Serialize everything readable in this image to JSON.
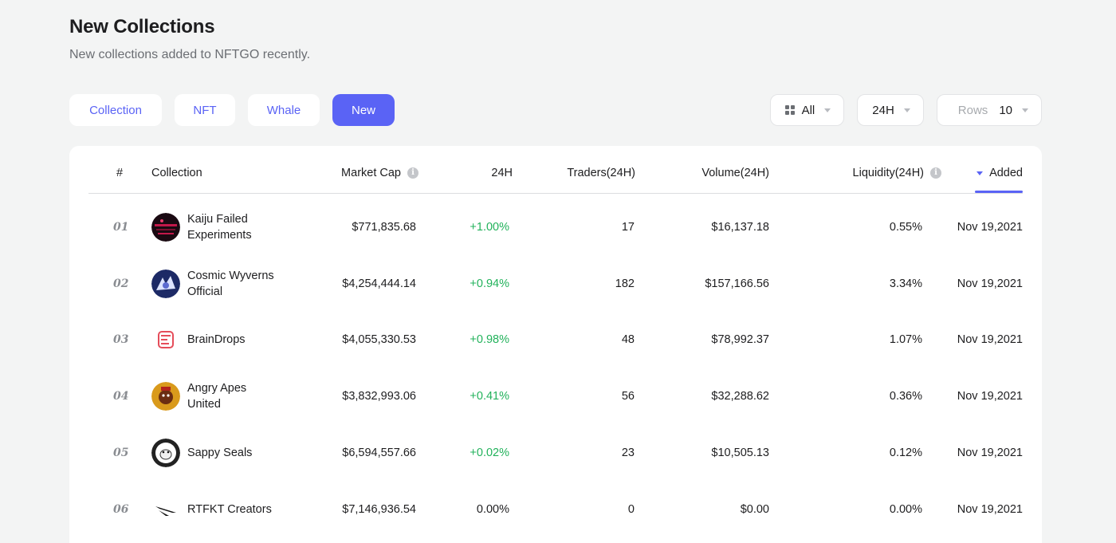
{
  "header": {
    "title": "New Collections",
    "subtitle": "New collections added to NFTGO recently."
  },
  "tabs": [
    {
      "label": "Collection",
      "active": false
    },
    {
      "label": "NFT",
      "active": false
    },
    {
      "label": "Whale",
      "active": false
    },
    {
      "label": "New",
      "active": true
    }
  ],
  "filters": {
    "category": {
      "icon": "grid-icon",
      "value": "All"
    },
    "period": {
      "value": "24H"
    },
    "rows": {
      "label": "Rows",
      "value": "10"
    }
  },
  "colors": {
    "accent": "#5a63f5",
    "positive": "#22b25b"
  },
  "table": {
    "columns": {
      "rank": "#",
      "collection": "Collection",
      "market_cap": "Market Cap",
      "change": "24H",
      "traders": "Traders(24H)",
      "volume": "Volume(24H)",
      "liquidity": "Liquidity(24H)",
      "added": "Added"
    },
    "sort": {
      "column": "added",
      "direction": "desc"
    },
    "rows": [
      {
        "rank": "01",
        "name": "Kaiju Failed Experiments",
        "avatar": "kaiju-avatar",
        "market_cap": "$771,835.68",
        "change": "+1.00%",
        "traders": "17",
        "volume": "$16,137.18",
        "liquidity": "0.55%",
        "added": "Nov 19,2021"
      },
      {
        "rank": "02",
        "name": "Cosmic Wyverns Official",
        "avatar": "wyvern-avatar",
        "market_cap": "$4,254,444.14",
        "change": "+0.94%",
        "traders": "182",
        "volume": "$157,166.56",
        "liquidity": "3.34%",
        "added": "Nov 19,2021"
      },
      {
        "rank": "03",
        "name": "BrainDrops",
        "avatar": "braindrops-avatar",
        "market_cap": "$4,055,330.53",
        "change": "+0.98%",
        "traders": "48",
        "volume": "$78,992.37",
        "liquidity": "1.07%",
        "added": "Nov 19,2021"
      },
      {
        "rank": "04",
        "name": "Angry Apes United",
        "avatar": "ape-avatar",
        "market_cap": "$3,832,993.06",
        "change": "+0.41%",
        "traders": "56",
        "volume": "$32,288.62",
        "liquidity": "0.36%",
        "added": "Nov 19,2021"
      },
      {
        "rank": "05",
        "name": "Sappy Seals",
        "avatar": "seal-avatar",
        "market_cap": "$6,594,557.66",
        "change": "+0.02%",
        "traders": "23",
        "volume": "$10,505.13",
        "liquidity": "0.12%",
        "added": "Nov 19,2021"
      },
      {
        "rank": "06",
        "name": "RTFKT Creators",
        "avatar": "rtfkt-logo",
        "market_cap": "$7,146,936.54",
        "change": "0.00%",
        "traders": "0",
        "volume": "$0.00",
        "liquidity": "0.00%",
        "added": "Nov 19,2021"
      }
    ]
  }
}
